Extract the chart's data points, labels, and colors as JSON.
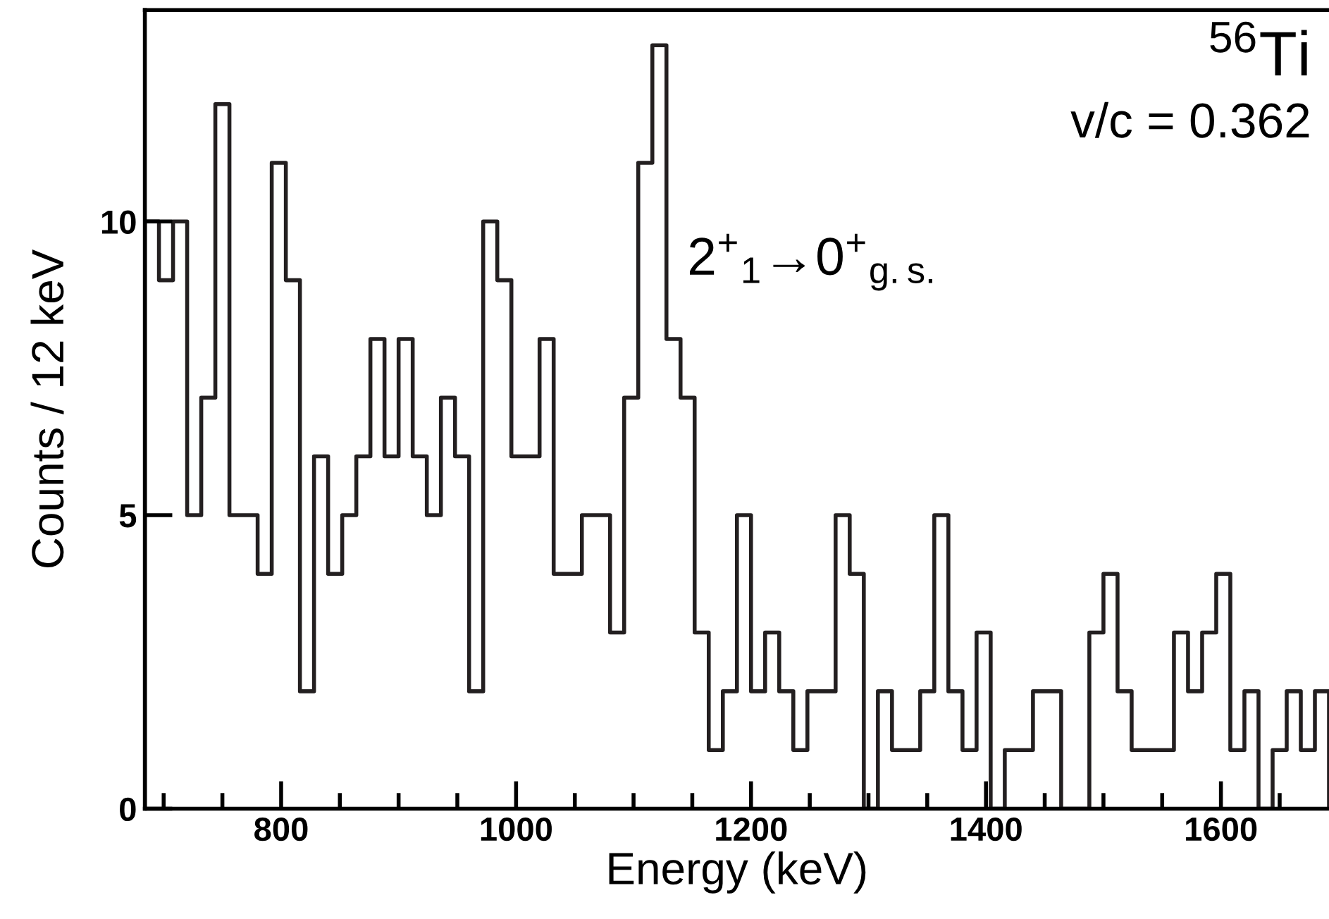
{
  "chart_data": {
    "type": "histogram",
    "xlabel": "Energy (keV)",
    "ylabel": "Counts / 12 keV",
    "annotations": [
      "$^{56}$Ti",
      "v/c = 0.362",
      "2$^{+}$$_{1}$→0$^{+}$$_{g.s.}$"
    ],
    "bins": [
      684,
      696,
      708,
      720,
      732,
      744,
      756,
      768,
      780,
      792,
      804,
      816,
      828,
      840,
      852,
      864,
      876,
      888,
      900,
      912,
      924,
      936,
      948,
      960,
      972,
      984,
      996,
      1008,
      1020,
      1032,
      1044,
      1056,
      1068,
      1080,
      1092,
      1104,
      1116,
      1128,
      1140,
      1152,
      1164,
      1176,
      1188,
      1200,
      1212,
      1224,
      1236,
      1248,
      1260,
      1272,
      1284,
      1296,
      1308,
      1320,
      1332,
      1344,
      1356,
      1368,
      1380,
      1392,
      1404,
      1416,
      1428,
      1440,
      1452,
      1464,
      1476,
      1488,
      1500,
      1512,
      1524,
      1536,
      1548,
      1560,
      1572,
      1584,
      1596,
      1608,
      1620,
      1632,
      1644,
      1656,
      1668,
      1680,
      1692
    ],
    "values": [
      10,
      9,
      10,
      5,
      7,
      12,
      5,
      5,
      4,
      11,
      9,
      2,
      6,
      4,
      5,
      6,
      8,
      6,
      8,
      6,
      5,
      7,
      6,
      2,
      10,
      9,
      6,
      6,
      8,
      4,
      4,
      5,
      5,
      3,
      7,
      11,
      13,
      8,
      7,
      3,
      1,
      2,
      5,
      2,
      3,
      2,
      1,
      2,
      2,
      5,
      4,
      0,
      2,
      1,
      1,
      2,
      5,
      2,
      1,
      3,
      0,
      1,
      1,
      2,
      2,
      0,
      0,
      3,
      4,
      2,
      1,
      1,
      1,
      3,
      2,
      3,
      4,
      1,
      2,
      0,
      1,
      2,
      1,
      2
    ],
    "color": "#231f20",
    "xlim": [
      684,
      1692
    ],
    "ylim": [
      0,
      13.6
    ],
    "xticks": [
      {
        "value": 700,
        "label": null
      },
      {
        "value": 750,
        "label": null
      },
      800,
      {
        "value": 850,
        "label": null
      },
      {
        "value": 900,
        "label": null
      },
      {
        "value": 950,
        "label": null
      },
      1000,
      {
        "value": 1050,
        "label": null
      },
      {
        "value": 1100,
        "label": null
      },
      {
        "value": 1150,
        "label": null
      },
      1200,
      {
        "value": 1250,
        "label": null
      },
      {
        "value": 1300,
        "label": null
      },
      {
        "value": 1350,
        "label": null
      },
      1400,
      {
        "value": 1450,
        "label": null
      },
      {
        "value": 1500,
        "label": null
      },
      {
        "value": 1550,
        "label": null
      },
      1600,
      {
        "value": 1650,
        "label": null
      }
    ],
    "yticks": [
      0,
      5,
      10
    ],
    "grid": false
  }
}
